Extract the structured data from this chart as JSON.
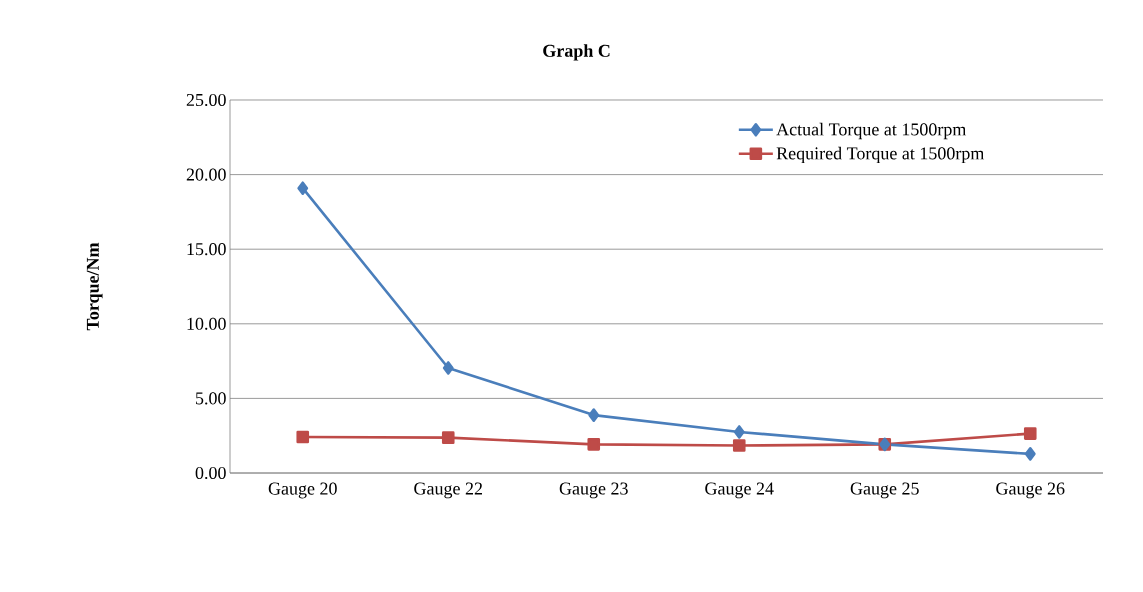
{
  "chart_data": {
    "type": "line",
    "title": "Graph C",
    "ylabel": "Torque/Nm",
    "categories": [
      "Gauge 20",
      "Gauge 22",
      "Gauge 23",
      "Gauge 24",
      "Gauge 25",
      "Gauge 26"
    ],
    "series": [
      {
        "name": "Actual Torque at 1500rpm",
        "color": "#4a7ebb",
        "marker": "diamond",
        "values": [
          19.09,
          7.04,
          3.88,
          2.75,
          1.92,
          1.28
        ]
      },
      {
        "name": "Required Torque at 1500rpm",
        "color": "#be4b48",
        "marker": "square",
        "values": [
          2.41,
          2.37,
          1.92,
          1.84,
          1.92,
          2.64
        ]
      }
    ],
    "ylim": [
      0,
      25
    ],
    "yticks": [
      {
        "value": 0,
        "label": "0.00"
      },
      {
        "value": 5,
        "label": "5.00"
      },
      {
        "value": 10,
        "label": "10.00"
      },
      {
        "value": 15,
        "label": "15.00"
      },
      {
        "value": 20,
        "label": "20.00"
      },
      {
        "value": 25,
        "label": "25.00"
      }
    ],
    "grid": "y",
    "legend": "top right",
    "line_style": "solid"
  }
}
